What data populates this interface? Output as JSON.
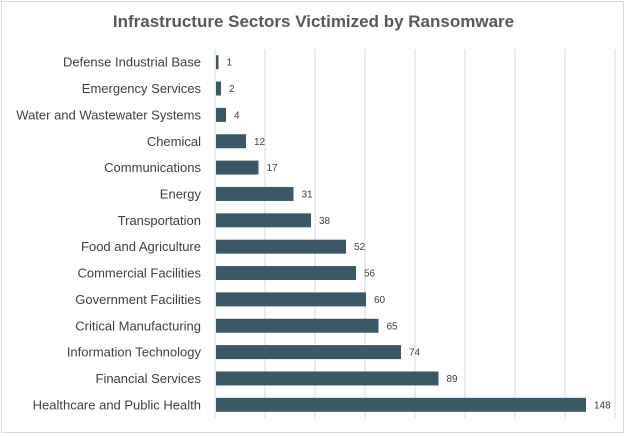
{
  "chart_data": {
    "type": "bar",
    "orientation": "horizontal",
    "title": "Infrastructure Sectors Victimized by Ransomware",
    "categories": [
      "Defense Industrial Base",
      "Emergency Services",
      "Water and Wastewater Systems",
      "Chemical",
      "Communications",
      "Energy",
      "Transportation",
      "Food and Agriculture",
      "Commercial Facilities",
      "Government Facilities",
      "Critical Manufacturing",
      "Information Technology",
      "Financial Services",
      "Healthcare and Public Health"
    ],
    "values": [
      1,
      2,
      4,
      12,
      17,
      31,
      38,
      52,
      56,
      60,
      65,
      74,
      89,
      148
    ],
    "xlim": [
      0,
      160
    ],
    "grid": true,
    "legend": "none",
    "bar_color": "#3b5866",
    "grid_color": "#d9d9d9"
  }
}
